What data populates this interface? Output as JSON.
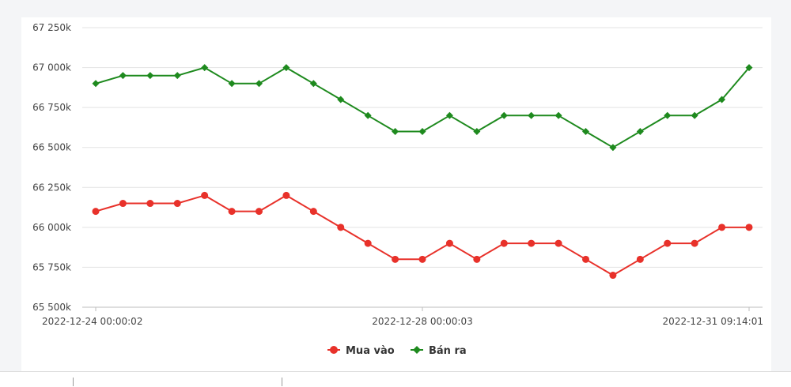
{
  "chart_data": {
    "type": "line",
    "x_tick_labels": [
      "2022-12-24 00:00:02",
      "2022-12-28 00:00:03",
      "2022-12-31 09:14:01"
    ],
    "y_tick_labels": [
      "65 500k",
      "65 750k",
      "66 000k",
      "66 250k",
      "66 500k",
      "66 750k",
      "67 000k",
      "67 250k"
    ],
    "ylim": [
      65500,
      67250
    ],
    "y_ticks": [
      65500,
      65750,
      66000,
      66250,
      66500,
      66750,
      67000,
      67250
    ],
    "grid": true,
    "legend_position": "bottom-center",
    "series": [
      {
        "name": "Mua vào",
        "color": "#e8312a",
        "marker": "circle",
        "values": [
          66100,
          66150,
          66150,
          66150,
          66200,
          66100,
          66100,
          66200,
          66100,
          66000,
          65900,
          65800,
          65800,
          65900,
          65800,
          65900,
          65900,
          65900,
          65800,
          65700,
          65800,
          65900,
          65900,
          66000,
          66000
        ]
      },
      {
        "name": "Bán ra",
        "color": "#1e8a1e",
        "marker": "diamond",
        "values": [
          66900,
          66950,
          66950,
          66950,
          67000,
          66900,
          66900,
          67000,
          66900,
          66800,
          66700,
          66600,
          66600,
          66700,
          66600,
          66700,
          66700,
          66700,
          66600,
          66500,
          66600,
          66700,
          66700,
          66800,
          67000
        ]
      }
    ]
  }
}
